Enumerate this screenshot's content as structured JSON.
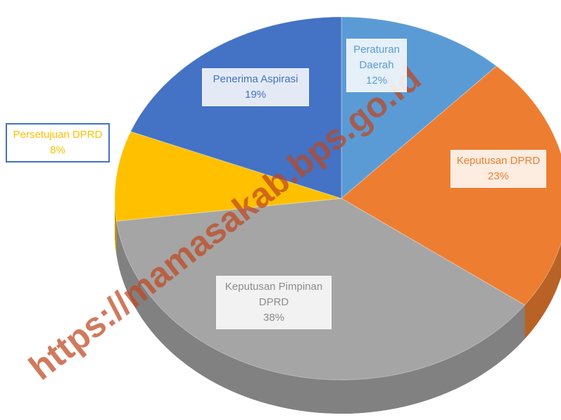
{
  "chart_data": {
    "type": "pie",
    "categories": [
      "Peraturan Daerah",
      "Keputusan DPRD",
      "Keputusan Pimpinan DPRD",
      "Persetujuan DPRD",
      "Penerima Aspirasi"
    ],
    "values": [
      12,
      23,
      38,
      8,
      19
    ],
    "value_labels": [
      "12%",
      "23%",
      "38%",
      "8%",
      "19%"
    ],
    "colors": [
      "#5b9bd5",
      "#ed7d31",
      "#a5a5a5",
      "#ffc000",
      "#4472c4"
    ],
    "watermark": "https://mamasakab.bps.go.id"
  }
}
